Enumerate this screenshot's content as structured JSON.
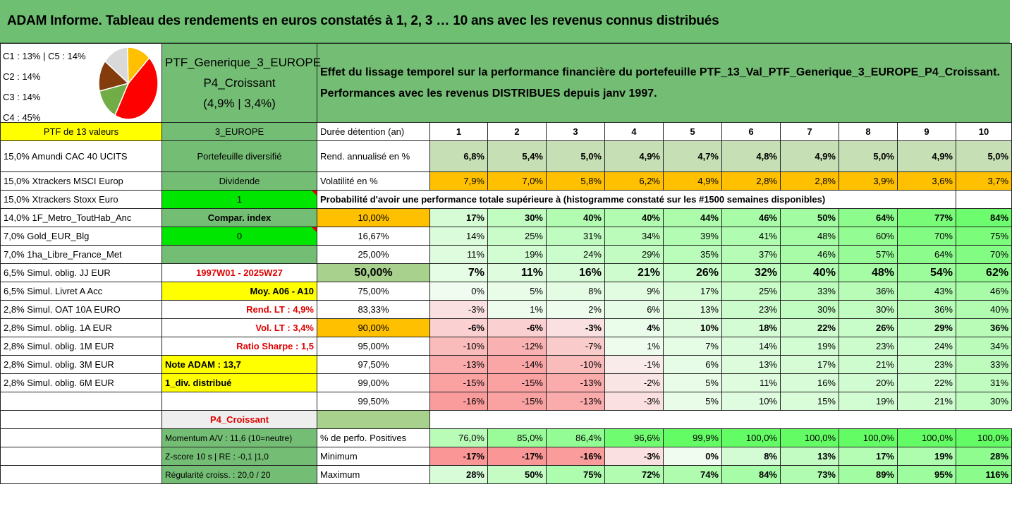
{
  "title": "ADAM Informe. Tableau des rendements en euros constatés à 1, 2, 3 … 10 ans avec les revenus connus distribués",
  "pie": {
    "labels": [
      "C1 : 13% | C5 : 14%",
      "C2 : 14%",
      "C3 : 14%",
      "C4 : 45%"
    ],
    "slices": [
      {
        "name": "C4",
        "value": 45,
        "color": "#ff0000"
      },
      {
        "name": "C3",
        "value": 14,
        "color": "#70ad47"
      },
      {
        "name": "C2",
        "value": 14,
        "color": "#843c0c"
      },
      {
        "name": "C5",
        "value": 14,
        "color": "#d9d9d9"
      },
      {
        "name": "C1",
        "value": 13,
        "color": "#ffc000"
      }
    ]
  },
  "portfolio": {
    "name_line1": "PTF_Generique_3_EUROPE_",
    "name_line2": "P4_Croissant",
    "name_line3": "(4,9% | 3,4%)",
    "description_line1": "Effet du lissage temporel sur la performance financière du portefeuille PTF_13_Val_PTF_Generique_3_EUROPE_P4_Croissant.",
    "description_line2": "Performances avec les revenus DISTRIBUES depuis janv 1997."
  },
  "header_row": {
    "ptf_label": "PTF de 13 valeurs",
    "zone": "3_EUROPE",
    "duration_label": "Durée détention (an)",
    "years": [
      "1",
      "2",
      "3",
      "4",
      "5",
      "6",
      "7",
      "8",
      "9",
      "10"
    ]
  },
  "holdings": [
    "15,0% Amundi CAC 40 UCITS",
    "15,0% Xtrackers MSCI Europ",
    "15,0% Xtrackers Stoxx Euro",
    "14,0% 1F_Metro_ToutHab_Anc",
    "7,0% Gold_EUR_Blg",
    "7,0% 1ha_Libre_France_Met",
    "6,5% Simul. oblig. JJ EUR",
    "6,5% Simul. Livret A Acc",
    "2,8% Simul. OAT 10A EURO",
    "2,8% Simul. oblig. 1A EUR",
    "2,8% Simul. oblig. 1M EUR",
    "2,8% Simul. oblig. 3M EUR",
    "2,8% Simul. oblig. 6M EUR"
  ],
  "side": {
    "diversification": "Portefeuille diversifié",
    "dividend_label": "Dividende",
    "dividend_value": "1",
    "compar_label": "Compar. index",
    "compar_value": "0",
    "period": "1997W01 - 2025W27",
    "moy": "Moy. A06 - A10",
    "rend_lt": "Rend. LT : 4,9%",
    "vol_lt": "Vol. LT : 3,4%",
    "sharpe": "Ratio Sharpe : 1,5",
    "note": "Note ADAM : 13,7",
    "div": "1_div. distribué",
    "profile": "P4_Croissant"
  },
  "rend": {
    "label": "Rend. annualisé en %",
    "values": [
      "6,8%",
      "5,4%",
      "5,0%",
      "4,9%",
      "4,7%",
      "4,8%",
      "4,9%",
      "5,0%",
      "4,9%",
      "5,0%"
    ]
  },
  "vol": {
    "label": "Volatilité en %",
    "values": [
      "7,9%",
      "7,0%",
      "5,8%",
      "6,2%",
      "4,9%",
      "2,8%",
      "2,8%",
      "3,9%",
      "3,6%",
      "3,7%"
    ]
  },
  "prob_title": "Probabilité d'avoir une performance totale supérieure à (histogramme constaté sur les #1500 semaines disponibles)",
  "prob_rows": [
    {
      "q": "10,00%",
      "values": [
        "17%",
        "30%",
        "40%",
        "40%",
        "44%",
        "46%",
        "50%",
        "64%",
        "77%",
        "84%"
      ]
    },
    {
      "q": "16,67%",
      "values": [
        "14%",
        "25%",
        "31%",
        "34%",
        "39%",
        "41%",
        "48%",
        "60%",
        "70%",
        "75%"
      ]
    },
    {
      "q": "25,00%",
      "values": [
        "11%",
        "19%",
        "24%",
        "29%",
        "35%",
        "37%",
        "46%",
        "57%",
        "64%",
        "70%"
      ]
    },
    {
      "q": "50,00%",
      "values": [
        "7%",
        "11%",
        "16%",
        "21%",
        "26%",
        "32%",
        "40%",
        "48%",
        "54%",
        "62%"
      ]
    },
    {
      "q": "75,00%",
      "values": [
        "0%",
        "5%",
        "8%",
        "9%",
        "17%",
        "25%",
        "33%",
        "36%",
        "43%",
        "46%"
      ]
    },
    {
      "q": "83,33%",
      "values": [
        "-3%",
        "1%",
        "2%",
        "6%",
        "13%",
        "23%",
        "30%",
        "30%",
        "36%",
        "40%"
      ]
    },
    {
      "q": "90,00%",
      "values": [
        "-6%",
        "-6%",
        "-3%",
        "4%",
        "10%",
        "18%",
        "22%",
        "26%",
        "29%",
        "36%"
      ]
    },
    {
      "q": "95,00%",
      "values": [
        "-10%",
        "-12%",
        "-7%",
        "1%",
        "7%",
        "14%",
        "19%",
        "23%",
        "24%",
        "34%"
      ]
    },
    {
      "q": "97,50%",
      "values": [
        "-13%",
        "-14%",
        "-10%",
        "-1%",
        "6%",
        "13%",
        "17%",
        "21%",
        "23%",
        "33%"
      ]
    },
    {
      "q": "99,00%",
      "values": [
        "-15%",
        "-15%",
        "-13%",
        "-2%",
        "5%",
        "11%",
        "16%",
        "20%",
        "22%",
        "31%"
      ]
    },
    {
      "q": "99,50%",
      "values": [
        "-16%",
        "-15%",
        "-13%",
        "-3%",
        "5%",
        "10%",
        "15%",
        "19%",
        "21%",
        "30%"
      ]
    }
  ],
  "bottom": {
    "momentum": "Momentum A/V : 11,6 (10=neutre)",
    "zscore": "Z-score 10 s | RE : -0,1 |1,0",
    "regularite": "Régularité croiss. : 20,0 / 20",
    "pos_label": "% de perfo. Positives",
    "pos_values": [
      "76,0%",
      "85,0%",
      "86,4%",
      "96,6%",
      "99,9%",
      "100,0%",
      "100,0%",
      "100,0%",
      "100,0%",
      "100,0%"
    ],
    "min_label": "Minimum",
    "min_values": [
      "-17%",
      "-17%",
      "-16%",
      "-3%",
      "0%",
      "8%",
      "13%",
      "17%",
      "19%",
      "28%"
    ],
    "max_label": "Maximum",
    "max_values": [
      "28%",
      "50%",
      "75%",
      "72%",
      "74%",
      "84%",
      "73%",
      "89%",
      "95%",
      "116%"
    ]
  },
  "colors": {
    "header_green": "#6fbf73",
    "cell_green": "#74bd74",
    "yellow": "#ffff00",
    "orange": "#ffc000",
    "bright_green": "#00e600",
    "red_text": "#e00000"
  }
}
